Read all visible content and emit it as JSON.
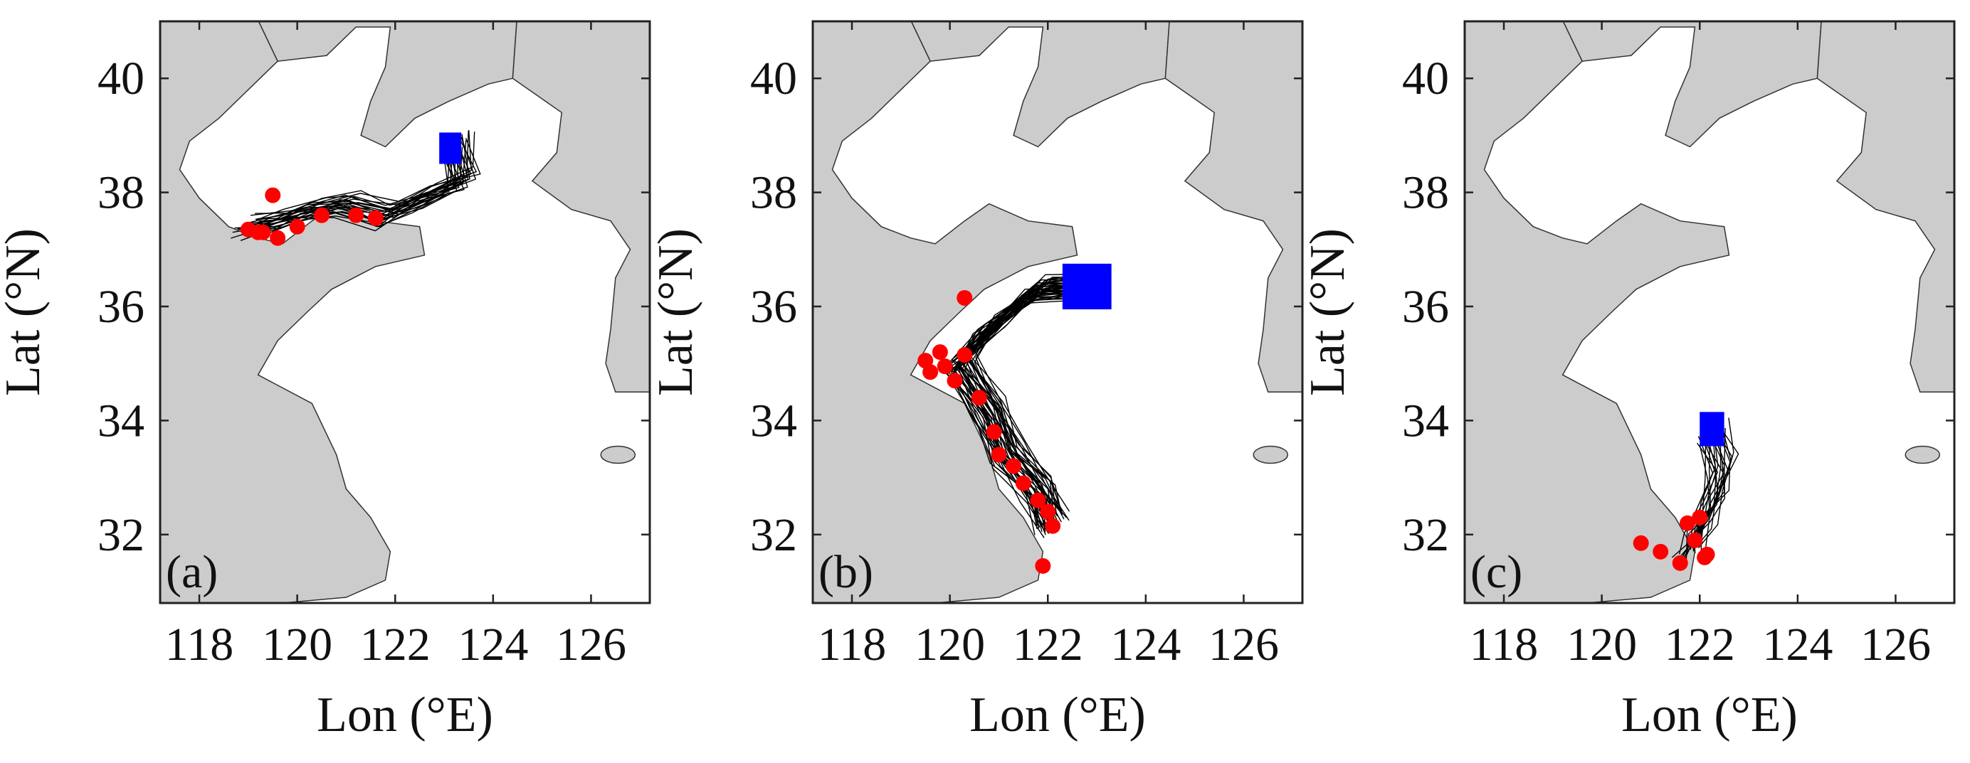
{
  "colors": {
    "land": "#cccccc",
    "sea": "#ffffff",
    "trajectory": "#000000",
    "release": "#0000ff",
    "endpoint": "#ff0000",
    "frame": "#222222"
  },
  "chart_data": [
    {
      "type": "scatter",
      "panel_label": "(a)",
      "xlabel": "Lon (°E)",
      "ylabel": "Lat (°N)",
      "xlim": [
        117.2,
        127.2
      ],
      "ylim": [
        30.8,
        41
      ],
      "xticks": [
        118,
        120,
        122,
        124,
        126
      ],
      "yticks": [
        32,
        34,
        36,
        38,
        40
      ],
      "grid": false,
      "release_box": {
        "lon": [
          122.9,
          123.35
        ],
        "lat": [
          38.5,
          39.05
        ]
      },
      "trajectory_lines": 24,
      "trajectory_path": [
        [
          123.25,
          38.9
        ],
        [
          123.4,
          38.2
        ],
        [
          122.6,
          37.9
        ],
        [
          121.8,
          37.6
        ],
        [
          121.0,
          37.8
        ],
        [
          120.3,
          37.7
        ],
        [
          119.6,
          37.5
        ],
        [
          119.0,
          37.4
        ]
      ],
      "end_points": [
        [
          119.0,
          37.35
        ],
        [
          119.3,
          37.3
        ],
        [
          119.6,
          37.2
        ],
        [
          120.0,
          37.4
        ],
        [
          120.5,
          37.6
        ],
        [
          121.2,
          37.6
        ],
        [
          121.6,
          37.55
        ],
        [
          119.5,
          37.95
        ],
        [
          119.2,
          37.3
        ]
      ]
    },
    {
      "type": "scatter",
      "panel_label": "(b)",
      "xlabel": "Lon (°E)",
      "ylabel": "Lat (°N)",
      "xlim": [
        117.2,
        127.2
      ],
      "ylim": [
        30.8,
        41
      ],
      "xticks": [
        118,
        120,
        122,
        124,
        126
      ],
      "yticks": [
        32,
        34,
        36,
        38,
        40
      ],
      "grid": false,
      "release_box": {
        "lon": [
          122.3,
          123.3
        ],
        "lat": [
          35.95,
          36.75
        ]
      },
      "trajectory_lines": 40,
      "trajectory_path": [
        [
          122.8,
          36.35
        ],
        [
          121.8,
          36.3
        ],
        [
          120.8,
          35.6
        ],
        [
          120.2,
          35.0
        ],
        [
          120.8,
          34.2
        ],
        [
          121.2,
          33.4
        ],
        [
          121.8,
          32.8
        ],
        [
          122.1,
          32.2
        ]
      ],
      "end_points": [
        [
          119.5,
          35.05
        ],
        [
          119.8,
          35.2
        ],
        [
          119.6,
          34.85
        ],
        [
          120.1,
          34.7
        ],
        [
          120.6,
          34.4
        ],
        [
          120.9,
          33.8
        ],
        [
          121.0,
          33.4
        ],
        [
          121.3,
          33.2
        ],
        [
          121.5,
          32.9
        ],
        [
          121.8,
          32.6
        ],
        [
          122.0,
          32.4
        ],
        [
          122.1,
          32.15
        ],
        [
          121.9,
          31.45
        ],
        [
          120.3,
          36.15
        ],
        [
          120.3,
          35.15
        ],
        [
          119.9,
          34.95
        ]
      ]
    },
    {
      "type": "scatter",
      "panel_label": "(c)",
      "xlabel": "Lon (°E)",
      "ylabel": "Lat (°N)",
      "xlim": [
        117.2,
        127.2
      ],
      "ylim": [
        30.8,
        41
      ],
      "xticks": [
        118,
        120,
        122,
        124,
        126
      ],
      "yticks": [
        32,
        34,
        36,
        38,
        40
      ],
      "grid": false,
      "release_box": {
        "lon": [
          122.0,
          122.5
        ],
        "lat": [
          33.55,
          34.15
        ]
      },
      "trajectory_lines": 20,
      "trajectory_path": [
        [
          122.25,
          33.8
        ],
        [
          122.45,
          33.2
        ],
        [
          122.3,
          32.6
        ],
        [
          122.0,
          32.1
        ],
        [
          121.8,
          31.7
        ]
      ],
      "end_points": [
        [
          121.75,
          32.2
        ],
        [
          122.0,
          32.3
        ],
        [
          121.9,
          31.9
        ],
        [
          122.15,
          31.65
        ],
        [
          121.6,
          31.5
        ],
        [
          121.2,
          31.7
        ],
        [
          120.8,
          31.85
        ],
        [
          122.1,
          31.6
        ]
      ]
    }
  ]
}
